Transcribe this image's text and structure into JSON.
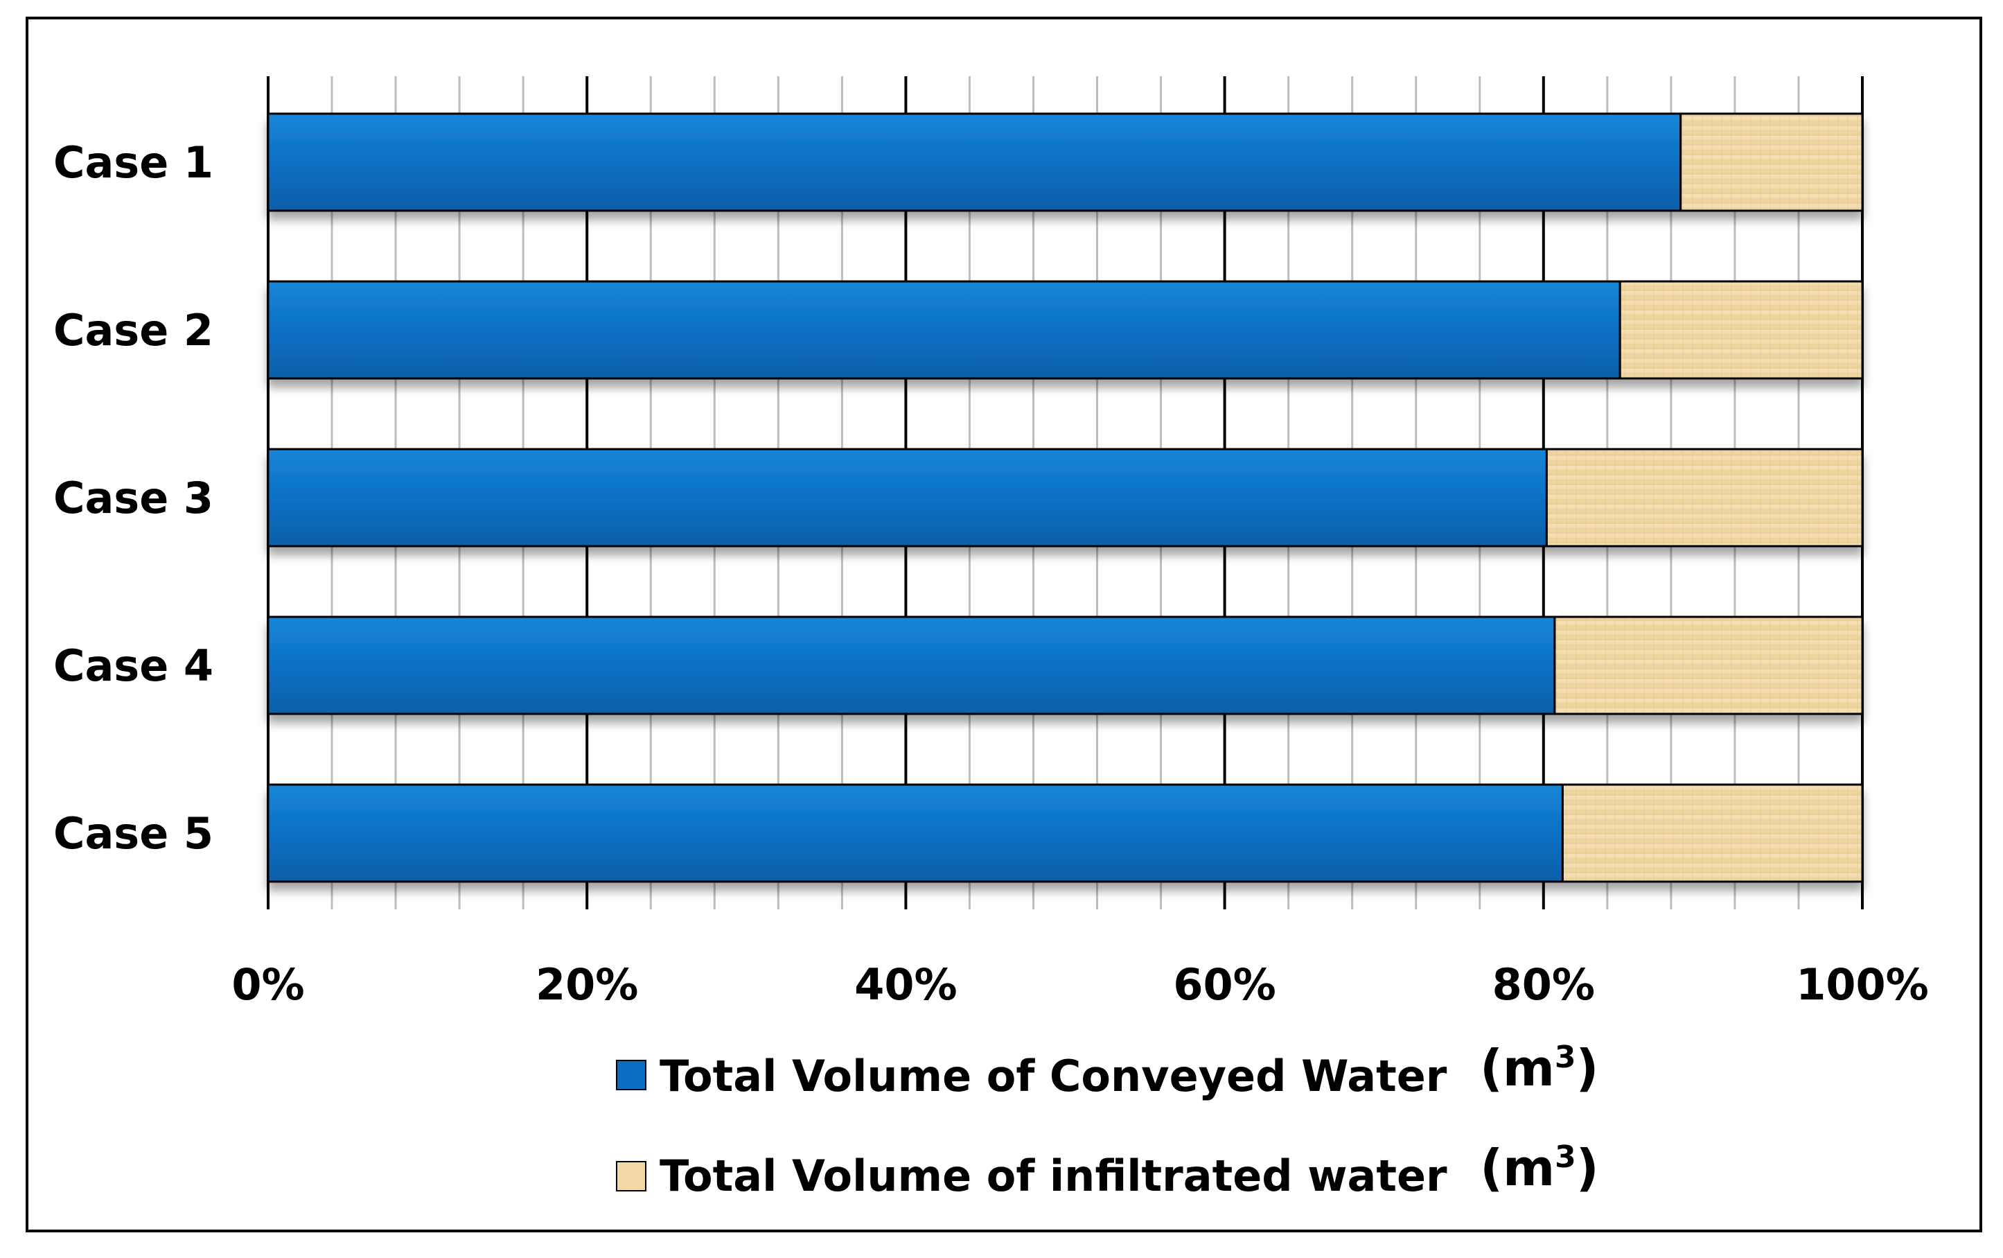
{
  "chart_data": {
    "type": "bar",
    "orientation": "horizontal",
    "stacked": "percent",
    "categories": [
      "Case 1",
      "Case 2",
      "Case 3",
      "Case 4",
      "Case 5"
    ],
    "series": [
      {
        "name": "Total Volume of Conveyed Water",
        "unit_base": "(m",
        "unit_sup": "3",
        "unit_close": ")",
        "color": "#0A6FC2",
        "values": [
          88.6,
          84.8,
          80.2,
          80.7,
          81.2
        ]
      },
      {
        "name": "Total Volume of infiltrated water",
        "unit_base": "(m",
        "unit_sup": "3",
        "unit_close": ")",
        "color": "#F2D9A6",
        "values": [
          11.4,
          15.2,
          19.8,
          19.3,
          18.8
        ]
      }
    ],
    "x_ticks": [
      "0%",
      "20%",
      "40%",
      "60%",
      "80%",
      "100%"
    ],
    "xlim": [
      0,
      100
    ],
    "major_grid_step": 20,
    "minor_grid_step": 4,
    "grid": true,
    "legend_position": "bottom-center"
  }
}
